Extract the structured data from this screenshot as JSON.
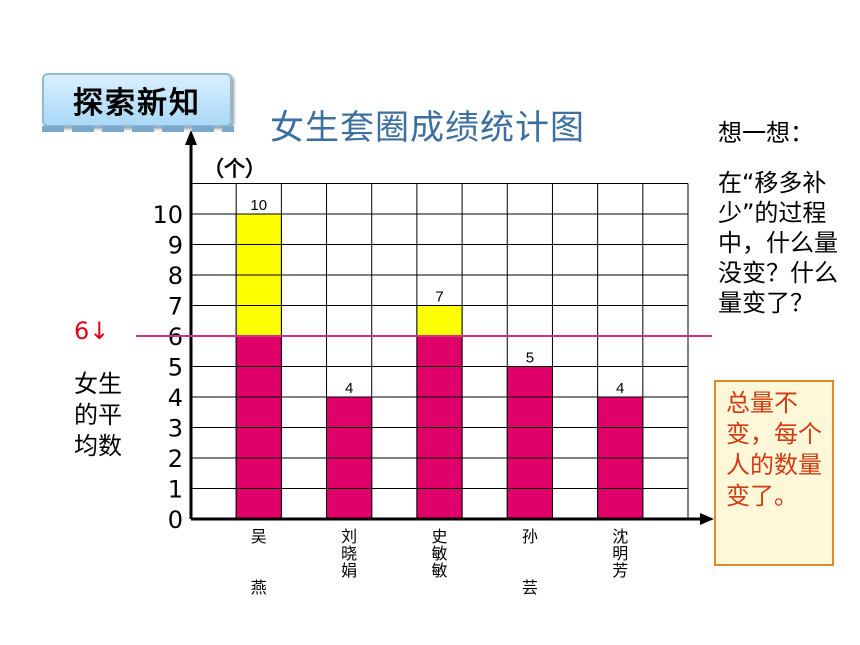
{
  "badge": "探索新知",
  "chart_data": {
    "type": "bar",
    "title": "女生套圈成绩统计图",
    "ylabel": "（个）",
    "categories": [
      "吴燕",
      "刘晓娟",
      "史敏敏",
      "孙芸",
      "沈明芳"
    ],
    "values": [
      10,
      4,
      7,
      5,
      4
    ],
    "average": 6,
    "yticks": [
      "0",
      "1",
      "2",
      "3",
      "4",
      "5",
      "6",
      "7",
      "8",
      "9",
      "10"
    ],
    "ylim": [
      0,
      11
    ],
    "grid": true,
    "colors": {
      "below_average": "#e0006a",
      "above_average": "#ffff00",
      "average_line": "#d0308a"
    }
  },
  "average_marker": "6↓",
  "average_label": "女生的平均数",
  "think": {
    "title": "想一想：",
    "question": "在“移多补少”的过程中，什么量没变？什么量变了？"
  },
  "answer": "总量不变，每个人的数量变了。"
}
